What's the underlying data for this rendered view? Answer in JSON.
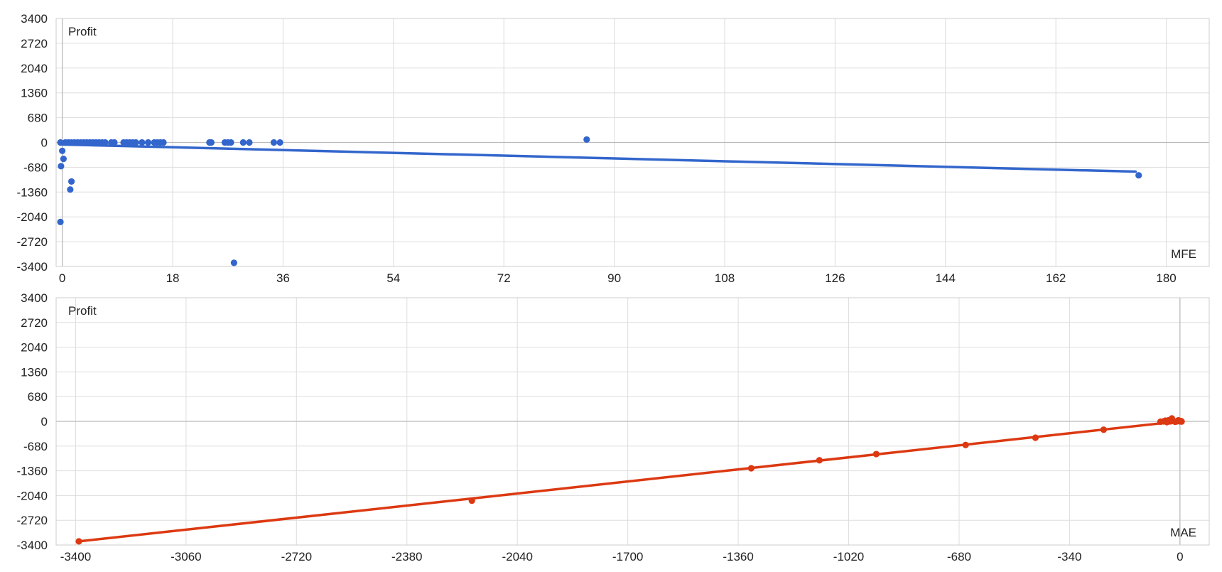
{
  "colors": {
    "mfe": "#3366cc",
    "mae": "#dc3912",
    "grid": "#dddddd",
    "background": "#ffffff"
  },
  "chart_data": [
    {
      "type": "scatter",
      "ylabel": "Profit",
      "xlabel": "MFE",
      "xlim": [
        -1,
        187
      ],
      "ylim": [
        -3400,
        3400
      ],
      "xticks": [
        0,
        18,
        36,
        54,
        72,
        90,
        108,
        126,
        144,
        162,
        180
      ],
      "yticks": [
        3400,
        2720,
        2040,
        1360,
        680,
        0,
        -680,
        -1360,
        -2040,
        -2720,
        -3400
      ],
      "grid": true,
      "trendline": {
        "x": [
          0,
          175
        ],
        "y": [
          -55,
          -800
        ]
      },
      "series": [
        {
          "points": [
            [
              -0.3,
              0
            ],
            [
              0,
              -230
            ],
            [
              -0.2,
              -650
            ],
            [
              0.2,
              -450
            ],
            [
              1.5,
              -1070
            ],
            [
              1.3,
              -1290
            ],
            [
              -0.3,
              -2180
            ],
            [
              0.5,
              0
            ],
            [
              1,
              0
            ],
            [
              1.5,
              0
            ],
            [
              2,
              0
            ],
            [
              2.5,
              0
            ],
            [
              3,
              0
            ],
            [
              3.5,
              0
            ],
            [
              4,
              0
            ],
            [
              4.5,
              0
            ],
            [
              5,
              0
            ],
            [
              5.5,
              0
            ],
            [
              6,
              0
            ],
            [
              6.5,
              0
            ],
            [
              7,
              0
            ],
            [
              8,
              0
            ],
            [
              8.5,
              0
            ],
            [
              10,
              0
            ],
            [
              10.5,
              0
            ],
            [
              11,
              0
            ],
            [
              11.5,
              0
            ],
            [
              12,
              0
            ],
            [
              13,
              0
            ],
            [
              14,
              0
            ],
            [
              15,
              0
            ],
            [
              15.5,
              0
            ],
            [
              16,
              0
            ],
            [
              16.5,
              0
            ],
            [
              24,
              0
            ],
            [
              24.3,
              0
            ],
            [
              26.5,
              0
            ],
            [
              27,
              0
            ],
            [
              27.5,
              0
            ],
            [
              29.5,
              0
            ],
            [
              30.5,
              0
            ],
            [
              34.5,
              0
            ],
            [
              35.5,
              0
            ],
            [
              85.5,
              80
            ],
            [
              175.5,
              -900
            ],
            [
              28,
              -3300
            ]
          ]
        }
      ]
    },
    {
      "type": "scatter",
      "ylabel": "Profit",
      "xlabel": "MAE",
      "xlim": [
        -3460,
        90
      ],
      "ylim": [
        -3400,
        3400
      ],
      "xticks": [
        -3400,
        -3060,
        -2720,
        -2380,
        -2040,
        -1700,
        -1360,
        -1020,
        -680,
        -340,
        0
      ],
      "yticks": [
        3400,
        2720,
        2040,
        1360,
        680,
        0,
        -680,
        -1360,
        -2040,
        -2720,
        -3400
      ],
      "grid": true,
      "trendline": {
        "x": [
          -3390,
          -55
        ],
        "y": [
          -3300,
          -50
        ]
      },
      "series": [
        {
          "points": [
            [
              -3390,
              -3300
            ],
            [
              -2180,
              -2180
            ],
            [
              -1320,
              -1290
            ],
            [
              -1110,
              -1070
            ],
            [
              -935,
              -900
            ],
            [
              -660,
              -650
            ],
            [
              -445,
              -450
            ],
            [
              -235,
              -230
            ],
            [
              -60,
              -10
            ],
            [
              -50,
              0
            ],
            [
              -45,
              20
            ],
            [
              -40,
              -20
            ],
            [
              -35,
              30
            ],
            [
              -30,
              0
            ],
            [
              -25,
              80
            ],
            [
              -20,
              10
            ],
            [
              -15,
              -10
            ],
            [
              -10,
              0
            ],
            [
              -5,
              30
            ],
            [
              0,
              0
            ],
            [
              3,
              10
            ],
            [
              5,
              -5
            ]
          ]
        }
      ]
    }
  ]
}
